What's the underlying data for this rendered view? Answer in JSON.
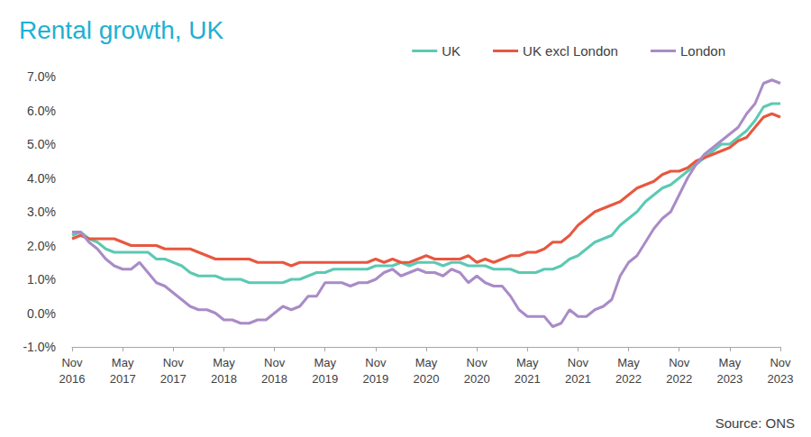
{
  "chart_data": {
    "type": "line",
    "title": "Rental growth, UK",
    "annotation": "Source: ONS",
    "categories": [
      "Nov 2016",
      null,
      null,
      null,
      null,
      null,
      "May 2017",
      null,
      null,
      null,
      null,
      null,
      "Nov 2017",
      null,
      null,
      null,
      null,
      null,
      "May 2018",
      null,
      null,
      null,
      null,
      null,
      "Nov 2018",
      null,
      null,
      null,
      null,
      null,
      "May 2019",
      null,
      null,
      null,
      null,
      null,
      "Nov 2019",
      null,
      null,
      null,
      null,
      null,
      "May 2020",
      null,
      null,
      null,
      null,
      null,
      "Nov 2020",
      null,
      null,
      null,
      null,
      null,
      "May 2021",
      null,
      null,
      null,
      null,
      null,
      "Nov 2021",
      null,
      null,
      null,
      null,
      null,
      "May 2022",
      null,
      null,
      null,
      null,
      null,
      "Nov 2022",
      null,
      null,
      null,
      null,
      null,
      "May 2023",
      null,
      null,
      null,
      null,
      null,
      "Nov 2023"
    ],
    "series": [
      {
        "name": "UK",
        "color": "#5cc9b3",
        "line_style": "solid",
        "values": [
          2.3,
          2.4,
          2.2,
          2.1,
          1.9,
          1.8,
          1.8,
          1.8,
          1.8,
          1.8,
          1.6,
          1.6,
          1.5,
          1.4,
          1.2,
          1.1,
          1.1,
          1.1,
          1.0,
          1.0,
          1.0,
          0.9,
          0.9,
          0.9,
          0.9,
          0.9,
          1.0,
          1.0,
          1.1,
          1.2,
          1.2,
          1.3,
          1.3,
          1.3,
          1.3,
          1.3,
          1.4,
          1.4,
          1.4,
          1.5,
          1.4,
          1.5,
          1.5,
          1.5,
          1.4,
          1.5,
          1.5,
          1.4,
          1.4,
          1.4,
          1.3,
          1.3,
          1.3,
          1.2,
          1.2,
          1.2,
          1.3,
          1.3,
          1.4,
          1.6,
          1.7,
          1.9,
          2.1,
          2.2,
          2.3,
          2.6,
          2.8,
          3.0,
          3.3,
          3.5,
          3.7,
          3.8,
          4.0,
          4.2,
          4.4,
          4.6,
          4.8,
          5.0,
          5.0,
          5.2,
          5.4,
          5.7,
          6.1,
          6.2,
          6.2
        ]
      },
      {
        "name": "UK excl London",
        "color": "#e8573f",
        "line_style": "solid",
        "values": [
          2.2,
          2.3,
          2.2,
          2.2,
          2.2,
          2.2,
          2.1,
          2.0,
          2.0,
          2.0,
          2.0,
          1.9,
          1.9,
          1.9,
          1.9,
          1.8,
          1.7,
          1.6,
          1.6,
          1.6,
          1.6,
          1.6,
          1.5,
          1.5,
          1.5,
          1.5,
          1.4,
          1.5,
          1.5,
          1.5,
          1.5,
          1.5,
          1.5,
          1.5,
          1.5,
          1.5,
          1.6,
          1.5,
          1.6,
          1.5,
          1.5,
          1.6,
          1.7,
          1.6,
          1.6,
          1.6,
          1.6,
          1.7,
          1.5,
          1.6,
          1.5,
          1.6,
          1.7,
          1.7,
          1.8,
          1.8,
          1.9,
          2.1,
          2.1,
          2.3,
          2.6,
          2.8,
          3.0,
          3.1,
          3.2,
          3.3,
          3.5,
          3.7,
          3.8,
          3.9,
          4.1,
          4.2,
          4.2,
          4.3,
          4.5,
          4.6,
          4.7,
          4.8,
          4.9,
          5.1,
          5.2,
          5.5,
          5.8,
          5.9,
          5.8
        ]
      },
      {
        "name": "London",
        "color": "#a98bc7",
        "line_style": "solid",
        "values": [
          2.4,
          2.4,
          2.1,
          1.9,
          1.6,
          1.4,
          1.3,
          1.3,
          1.5,
          1.2,
          0.9,
          0.8,
          0.6,
          0.4,
          0.2,
          0.1,
          0.1,
          0.0,
          -0.2,
          -0.2,
          -0.3,
          -0.3,
          -0.2,
          -0.2,
          0.0,
          0.2,
          0.1,
          0.2,
          0.5,
          0.5,
          0.9,
          0.9,
          0.9,
          0.8,
          0.9,
          0.9,
          1.0,
          1.2,
          1.3,
          1.1,
          1.2,
          1.3,
          1.2,
          1.2,
          1.1,
          1.3,
          1.2,
          0.9,
          1.1,
          0.9,
          0.8,
          0.8,
          0.5,
          0.1,
          -0.1,
          -0.1,
          -0.1,
          -0.4,
          -0.3,
          0.1,
          -0.1,
          -0.1,
          0.1,
          0.2,
          0.4,
          1.1,
          1.5,
          1.7,
          2.1,
          2.5,
          2.8,
          3.0,
          3.5,
          4.0,
          4.4,
          4.7,
          4.9,
          5.1,
          5.3,
          5.5,
          5.9,
          6.2,
          6.8,
          6.9,
          6.8
        ]
      }
    ],
    "ylim": [
      -1,
      7
    ],
    "yticks": [
      {
        "value": -1,
        "label": "-1.0%"
      },
      {
        "value": 0,
        "label": "0.0%"
      },
      {
        "value": 1,
        "label": "1.0%"
      },
      {
        "value": 2,
        "label": "2.0%"
      },
      {
        "value": 3,
        "label": "3.0%"
      },
      {
        "value": 4,
        "label": "4.0%"
      },
      {
        "value": 5,
        "label": "5.0%"
      },
      {
        "value": 6,
        "label": "6.0%"
      },
      {
        "value": 7,
        "label": "7.0%"
      }
    ],
    "grid": false,
    "legend": "top"
  }
}
